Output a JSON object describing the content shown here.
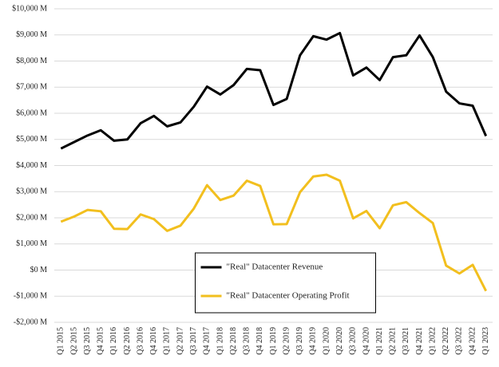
{
  "chart_data": {
    "type": "line",
    "categories": [
      "Q1 2015",
      "Q2 2015",
      "Q3 2015",
      "Q4 2015",
      "Q1 2016",
      "Q2 2016",
      "Q3 2016",
      "Q4 2016",
      "Q1 2017",
      "Q2 2017",
      "Q3 2017",
      "Q4 2017",
      "Q1 2018",
      "Q2 2018",
      "Q3 2018",
      "Q4 2018",
      "Q1 2019",
      "Q2 2019",
      "Q3 2019",
      "Q4 2019",
      "Q1 2020",
      "Q2 2020",
      "Q3 2020",
      "Q4 2020",
      "Q1 2021",
      "Q2 2021",
      "Q3 2021",
      "Q4 2021",
      "Q1 2022",
      "Q2 2022",
      "Q3 2022",
      "Q4 2022",
      "Q1 2023"
    ],
    "series": [
      {
        "name": "\"Real\" Datacenter Revenue",
        "color": "#000000",
        "values": [
          4650,
          4900,
          5150,
          5350,
          4950,
          5000,
          5620,
          5900,
          5500,
          5650,
          6250,
          7020,
          6720,
          7080,
          7700,
          7650,
          6320,
          6550,
          8220,
          8950,
          8820,
          9070,
          7450,
          7750,
          7270,
          8150,
          8220,
          8980,
          8150,
          6830,
          6380,
          6290,
          5130
        ]
      },
      {
        "name": "\"Real\" Datacenter Operating Profit",
        "color": "#f2bf1e",
        "values": [
          1850,
          2050,
          2300,
          2250,
          1580,
          1570,
          2130,
          1950,
          1500,
          1700,
          2350,
          3250,
          2680,
          2850,
          3420,
          3220,
          1750,
          1760,
          2980,
          3580,
          3650,
          3420,
          1980,
          2260,
          1600,
          2480,
          2600,
          2180,
          1800,
          170,
          -130,
          200,
          -800
        ]
      }
    ],
    "ylim": [
      -2000,
      10000
    ],
    "yticks": [
      {
        "value": -2000,
        "label": "-$2,000 M"
      },
      {
        "value": -1000,
        "label": "-$1,000 M"
      },
      {
        "value": 0,
        "label": "$0 M"
      },
      {
        "value": 1000,
        "label": "$1,000 M"
      },
      {
        "value": 2000,
        "label": "$2,000 M"
      },
      {
        "value": 3000,
        "label": "$3,000 M"
      },
      {
        "value": 4000,
        "label": "$4,000 M"
      },
      {
        "value": 5000,
        "label": "$5,000 M"
      },
      {
        "value": 6000,
        "label": "$6,000 M"
      },
      {
        "value": 7000,
        "label": "$7,000 M"
      },
      {
        "value": 8000,
        "label": "$8,000 M"
      },
      {
        "value": 9000,
        "label": "$9,000 M"
      },
      {
        "value": 10000,
        "label": "$10,000 M"
      }
    ],
    "grid": true,
    "legend": "lower center"
  }
}
